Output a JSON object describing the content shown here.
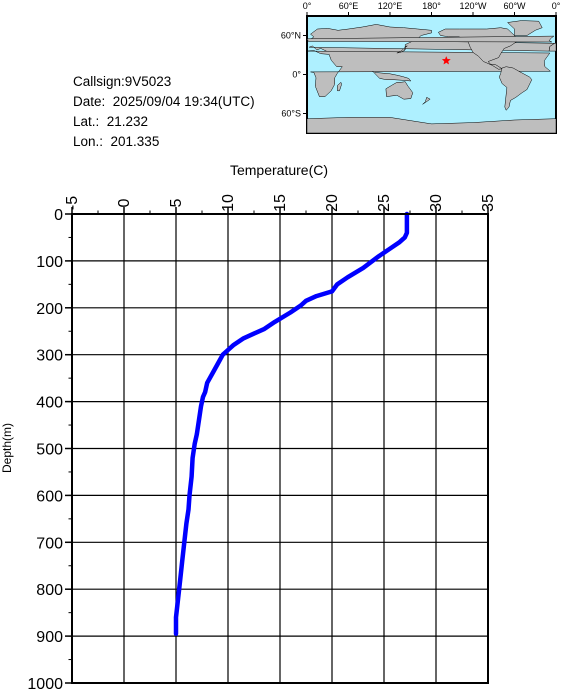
{
  "info": {
    "callsign": "Callsign:9V5023",
    "date": "Date:  2025/09/04 19:34(UTC)",
    "lat": "Lat.:  21.232",
    "lon": "Lon.:  201.335"
  },
  "map": {
    "lon_labels": [
      "0°",
      "60°E",
      "120°E",
      "180°",
      "120°W",
      "60°W",
      "0°"
    ],
    "lat_labels": [
      "60°N",
      "0°",
      "60°S"
    ],
    "ocean_color": "#aef0ff",
    "land_color": "#bebebe",
    "marker": {
      "lon": 201.335,
      "lat": 21.232,
      "color": "#ff0000",
      "icon": "star-icon"
    }
  },
  "chart_data": {
    "type": "line",
    "xlabel": "Temperature(C)",
    "ylabel": "Depth(m)",
    "xlim": [
      -5,
      35
    ],
    "ylim": [
      0,
      1000
    ],
    "x_ticks": [
      "-5",
      "0",
      "5",
      "10",
      "15",
      "20",
      "25",
      "30",
      "35"
    ],
    "y_ticks": [
      "0",
      "100",
      "200",
      "300",
      "400",
      "500",
      "600",
      "700",
      "800",
      "900",
      "1000"
    ],
    "grid": true,
    "line_color": "#0000ff",
    "series": [
      {
        "temperature": [
          27.2,
          27.2,
          27.2,
          27.0,
          26.5,
          25.5,
          24.5,
          23.0,
          21.5,
          20.5,
          20.0,
          18.5,
          17.5,
          17.0,
          16.0,
          14.5,
          13.5,
          12.5,
          11.5,
          10.5,
          10.0,
          9.5,
          9.0,
          8.5,
          8.0,
          7.8,
          7.6,
          7.4,
          7.2,
          7.0,
          6.8,
          6.6,
          6.5,
          6.3,
          6.2,
          6.0,
          5.8,
          5.6,
          5.4,
          5.2,
          5.0,
          5.0
        ],
        "depth": [
          0,
          20,
          40,
          50,
          60,
          75,
          90,
          115,
          135,
          150,
          165,
          175,
          185,
          195,
          210,
          230,
          245,
          255,
          265,
          280,
          290,
          300,
          320,
          340,
          360,
          380,
          390,
          410,
          440,
          470,
          490,
          520,
          560,
          600,
          630,
          660,
          700,
          740,
          780,
          820,
          860,
          895
        ]
      }
    ]
  }
}
